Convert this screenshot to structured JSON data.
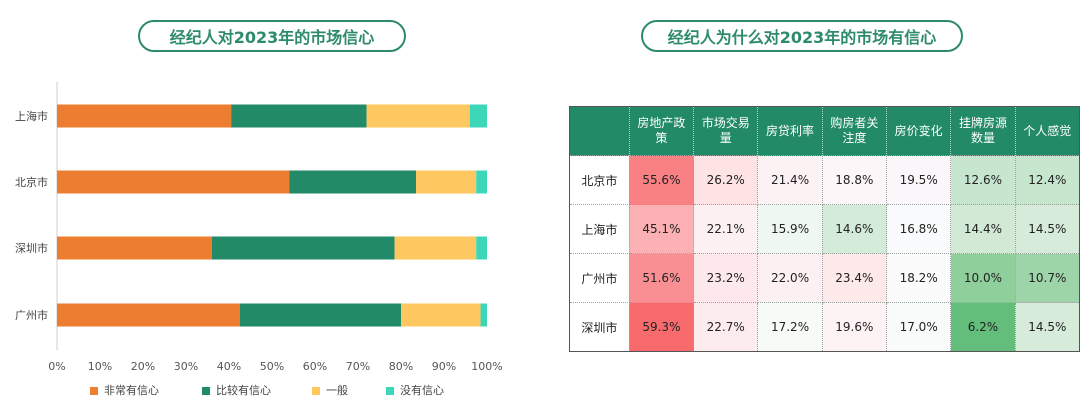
{
  "left_panel": {
    "title": "经纪人对2023年的市场信心"
  },
  "right_panel": {
    "title": "经纪人为什么对2023年的市场有信心"
  },
  "chart_data": [
    {
      "type": "bar",
      "orientation": "horizontal",
      "stacked": true,
      "title": "经纪人对2023年的市场信心",
      "categories": [
        "上海市",
        "北京市",
        "深圳市",
        "广州市"
      ],
      "series": [
        {
          "name": "非常有信心",
          "color": "#ed7d31",
          "values": [
            40.5,
            54.0,
            36.0,
            42.5
          ]
        },
        {
          "name": "比较有信心",
          "color": "#228a66",
          "values": [
            31.5,
            29.5,
            42.5,
            37.5
          ]
        },
        {
          "name": "一般",
          "color": "#ffc75f",
          "values": [
            24.0,
            14.0,
            19.0,
            18.5
          ]
        },
        {
          "name": "没有信心",
          "color": "#3cd6b8",
          "values": [
            4.0,
            2.5,
            2.5,
            1.5
          ]
        }
      ],
      "xlim": [
        0,
        100
      ],
      "x_ticks": [
        "0%",
        "10%",
        "20%",
        "30%",
        "40%",
        "50%",
        "60%",
        "70%",
        "80%",
        "90%",
        "100%"
      ],
      "legend_position": "bottom",
      "grid": false
    },
    {
      "type": "table",
      "title": "经纪人为什么对2023年的市场有信心",
      "columns": [
        "房地产政策",
        "市场交易量",
        "房贷利率",
        "购房者关注度",
        "房价变化",
        "挂牌房源数量",
        "个人感觉"
      ],
      "header_lines": [
        [
          "房地产政",
          "策"
        ],
        [
          "市场交易",
          "量"
        ],
        [
          "房贷利率"
        ],
        [
          "购房者关",
          "注度"
        ],
        [
          "房价变化"
        ],
        [
          "挂牌房源",
          "数量"
        ],
        [
          "个人感觉"
        ]
      ],
      "rows": [
        {
          "label": "北京市",
          "cells": [
            "55.6%",
            "26.2%",
            "21.4%",
            "18.8%",
            "19.5%",
            "12.6%",
            "12.4%"
          ],
          "colors": [
            "#f98183",
            "#fde3e4",
            "#fcf2f4",
            "#fdf6f9",
            "#fbf6fa",
            "#c7e6cf",
            "#c6e6ce"
          ]
        },
        {
          "label": "上海市",
          "cells": [
            "45.1%",
            "22.1%",
            "15.9%",
            "14.6%",
            "16.8%",
            "14.4%",
            "14.5%"
          ],
          "colors": [
            "#fbb1b3",
            "#fcf0f2",
            "#eef7f1",
            "#d5ebd9",
            "#f9fafb",
            "#d2e9d6",
            "#d6ebda"
          ]
        },
        {
          "label": "广州市",
          "cells": [
            "51.6%",
            "23.2%",
            "22.0%",
            "23.4%",
            "18.2%",
            "10.0%",
            "10.7%"
          ],
          "colors": [
            "#f98f92",
            "#fde9eb",
            "#fcf0f2",
            "#fde8ea",
            "#fbfbfb",
            "#8fcf9b",
            "#9dd5a8"
          ]
        },
        {
          "label": "深圳市",
          "cells": [
            "59.3%",
            "22.7%",
            "17.2%",
            "19.6%",
            "17.0%",
            "6.2%",
            "14.5%"
          ],
          "colors": [
            "#f86b6d",
            "#fdecee",
            "#f6fbf8",
            "#fdf3f5",
            "#f9fbfa",
            "#63be7b",
            "#d6ebda"
          ]
        }
      ]
    }
  ]
}
